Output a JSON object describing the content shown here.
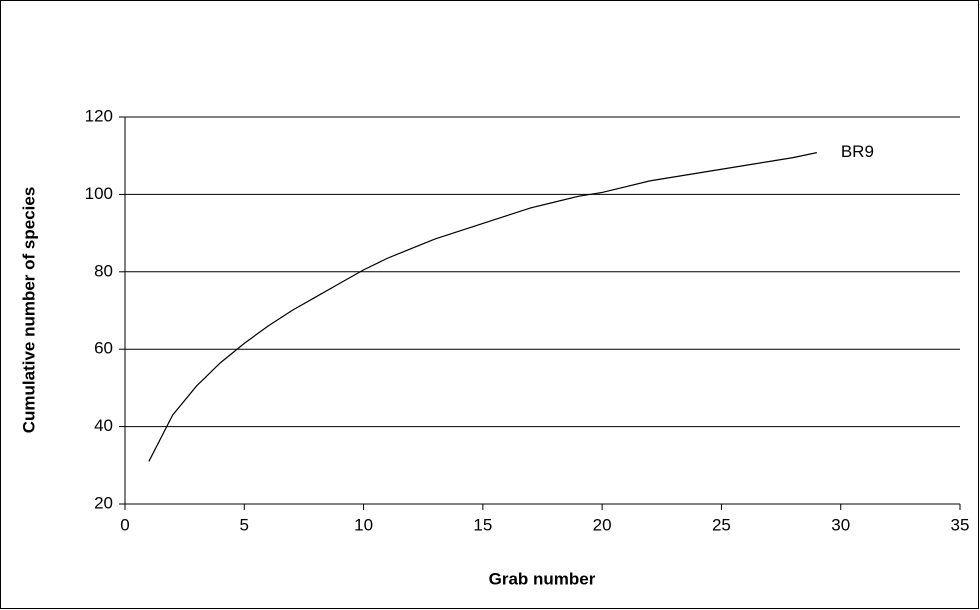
{
  "chart_data": {
    "type": "line",
    "x_label": "Grab number",
    "y_label": "Cumulative number of species",
    "x": [
      1,
      2,
      3,
      4,
      5,
      6,
      7,
      8,
      9,
      10,
      11,
      12,
      13,
      14,
      15,
      16,
      17,
      18,
      19,
      20,
      21,
      22,
      23,
      24,
      25,
      26,
      27,
      28,
      29
    ],
    "series": [
      {
        "name": "BR9",
        "color": "#000000",
        "values": [
          31,
          43,
          50.5,
          56.5,
          61.5,
          66,
          70,
          73.5,
          77,
          80.5,
          83.5,
          86,
          88.5,
          90.5,
          92.5,
          94.5,
          96.5,
          98,
          99.5,
          100.5,
          102,
          103.5,
          104.5,
          105.5,
          106.5,
          107.5,
          108.5,
          109.5,
          110.8
        ]
      }
    ],
    "xlim": [
      0,
      35
    ],
    "xticks": [
      0,
      5,
      10,
      15,
      20,
      25,
      30,
      35
    ],
    "ylim": [
      20,
      120
    ],
    "yticks": [
      20,
      40,
      60,
      80,
      100,
      120
    ],
    "grid": true
  }
}
